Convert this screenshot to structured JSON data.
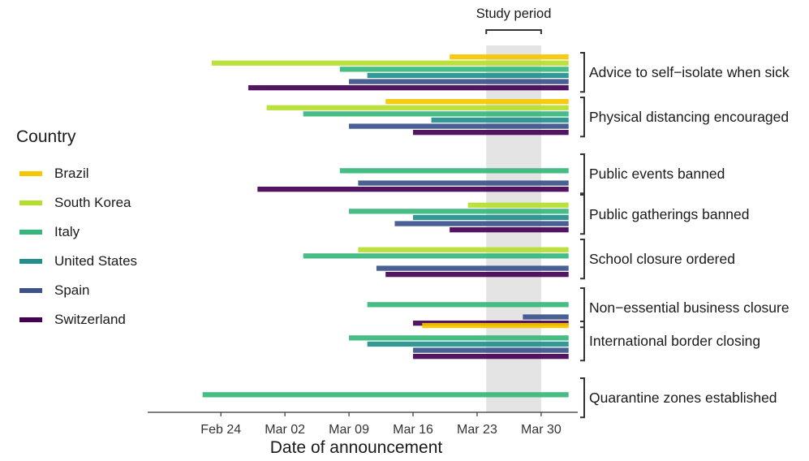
{
  "chart_data": {
    "type": "timeline-bar",
    "xlabel": "Date of announcement",
    "legend": {
      "title": "Country",
      "position": "left"
    },
    "study_period": {
      "label": "Study period",
      "start": "2020-03-24",
      "end": "2020-03-30"
    },
    "x_range": [
      "2020-02-16",
      "2020-04-03"
    ],
    "end_date": "2020-04-02",
    "x_ticks": [
      {
        "date": "2020-02-24",
        "label": "Feb 24"
      },
      {
        "date": "2020-03-02",
        "label": "Mar 02"
      },
      {
        "date": "2020-03-09",
        "label": "Mar 09"
      },
      {
        "date": "2020-03-16",
        "label": "Mar 16"
      },
      {
        "date": "2020-03-23",
        "label": "Mar 23"
      },
      {
        "date": "2020-03-30",
        "label": "Mar 30"
      }
    ],
    "countries": [
      {
        "name": "Brazil",
        "color": "#F6C700"
      },
      {
        "name": "South Korea",
        "color": "#B5DE2B"
      },
      {
        "name": "Italy",
        "color": "#35B779"
      },
      {
        "name": "United States",
        "color": "#21908C"
      },
      {
        "name": "Spain",
        "color": "#3B528B"
      },
      {
        "name": "Switzerland",
        "color": "#440154"
      }
    ],
    "groups": [
      {
        "label": "Advice to self−isolate when sick",
        "bars": [
          {
            "country": "Brazil",
            "start": "2020-03-20"
          },
          {
            "country": "South Korea",
            "start": "2020-02-23"
          },
          {
            "country": "Italy",
            "start": "2020-03-08"
          },
          {
            "country": "United States",
            "start": "2020-03-11"
          },
          {
            "country": "Spain",
            "start": "2020-03-09"
          },
          {
            "country": "Switzerland",
            "start": "2020-02-27"
          }
        ]
      },
      {
        "label": "Physical distancing encouraged",
        "bars": [
          {
            "country": "Brazil",
            "start": "2020-03-13"
          },
          {
            "country": "South Korea",
            "start": "2020-02-29"
          },
          {
            "country": "Italy",
            "start": "2020-03-04"
          },
          {
            "country": "United States",
            "start": "2020-03-18"
          },
          {
            "country": "Spain",
            "start": "2020-03-09"
          },
          {
            "country": "Switzerland",
            "start": "2020-03-16"
          }
        ]
      },
      {
        "label": "Public events banned",
        "bars": [
          {
            "country": "Italy",
            "start": "2020-03-08"
          },
          {
            "country": "Spain",
            "start": "2020-03-10"
          },
          {
            "country": "Switzerland",
            "start": "2020-02-28"
          }
        ]
      },
      {
        "label": "Public gatherings banned",
        "bars": [
          {
            "country": "South Korea",
            "start": "2020-03-22"
          },
          {
            "country": "Italy",
            "start": "2020-03-09"
          },
          {
            "country": "United States",
            "start": "2020-03-16"
          },
          {
            "country": "Spain",
            "start": "2020-03-14"
          },
          {
            "country": "Switzerland",
            "start": "2020-03-20"
          }
        ]
      },
      {
        "label": "School closure ordered",
        "bars": [
          {
            "country": "South Korea",
            "start": "2020-03-10"
          },
          {
            "country": "Italy",
            "start": "2020-03-04"
          },
          {
            "country": "Spain",
            "start": "2020-03-12"
          },
          {
            "country": "Switzerland",
            "start": "2020-03-13"
          }
        ]
      },
      {
        "label": "Non−essential business closure",
        "bars": [
          {
            "country": "Italy",
            "start": "2020-03-11"
          },
          {
            "country": "Spain",
            "start": "2020-03-28"
          },
          {
            "country": "Switzerland",
            "start": "2020-03-16"
          }
        ]
      },
      {
        "label": "International border closing",
        "bars": [
          {
            "country": "Brazil",
            "start": "2020-03-17"
          },
          {
            "country": "Italy",
            "start": "2020-03-09"
          },
          {
            "country": "United States",
            "start": "2020-03-11"
          },
          {
            "country": "Spain",
            "start": "2020-03-16"
          },
          {
            "country": "Switzerland",
            "start": "2020-03-16"
          }
        ]
      },
      {
        "label": "Quarantine zones established",
        "bars": [
          {
            "country": "Italy",
            "start": "2020-02-22"
          }
        ]
      }
    ]
  }
}
